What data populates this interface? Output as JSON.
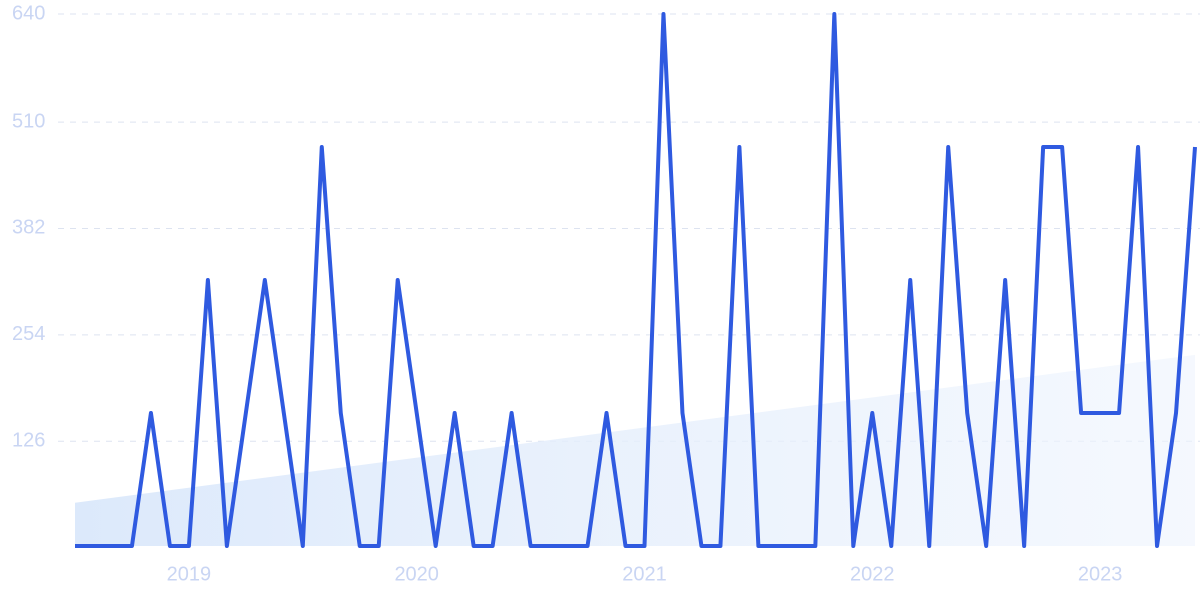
{
  "chart_data": {
    "type": "line",
    "categories": [
      null,
      null,
      null,
      null,
      null,
      null,
      "2019",
      null,
      null,
      null,
      null,
      null,
      null,
      null,
      null,
      null,
      null,
      null,
      "2020",
      null,
      null,
      null,
      null,
      null,
      null,
      null,
      null,
      null,
      null,
      null,
      "2021",
      null,
      null,
      null,
      null,
      null,
      null,
      null,
      null,
      null,
      null,
      null,
      "2022",
      null,
      null,
      null,
      null,
      null,
      null,
      null,
      null,
      null,
      null,
      null,
      "2023",
      null,
      null,
      null,
      null,
      null
    ],
    "series": [
      {
        "color": "#2f5ae0",
        "values": [
          0,
          0,
          0,
          0,
          160,
          0,
          0,
          320,
          0,
          160,
          320,
          160,
          0,
          480,
          160,
          0,
          0,
          320,
          160,
          0,
          160,
          0,
          0,
          160,
          0,
          0,
          0,
          0,
          160,
          0,
          0,
          640,
          160,
          0,
          0,
          480,
          0,
          0,
          0,
          0,
          640,
          0,
          160,
          0,
          320,
          0,
          480,
          160,
          0,
          320,
          0,
          480,
          480,
          160,
          160,
          160,
          480,
          0,
          160,
          480
        ]
      }
    ],
    "trend": [
      52,
      230
    ],
    "ylim": [
      0,
      640
    ],
    "yticks": [
      126,
      254,
      382,
      510,
      640
    ],
    "grid": true
  }
}
